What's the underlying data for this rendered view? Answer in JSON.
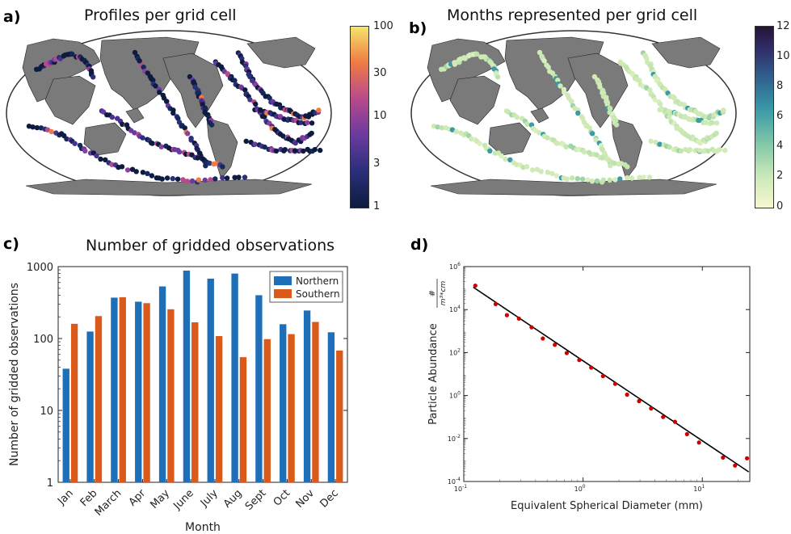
{
  "panels": {
    "a": {
      "label": "a)",
      "title": "Profiles per grid cell",
      "colorbar_ticks": [
        "100",
        "30",
        "10",
        "3",
        "1"
      ],
      "colors": {
        "low": "#0d1b3e",
        "mid": "#8d3fa0",
        "high": "#f5e46a"
      }
    },
    "b": {
      "label": "b)",
      "title": "Months represented per grid cell",
      "colorbar_ticks": [
        "12",
        "10",
        "8",
        "6",
        "4",
        "2",
        "0"
      ],
      "colors": {
        "low": "#f5f5cf",
        "mid": "#3a9aa6",
        "high": "#241533"
      }
    },
    "c": {
      "label": "c)",
      "title": "Number of gridded observations"
    },
    "d": {
      "label": "d)"
    }
  },
  "chart_data": [
    {
      "type": "bar",
      "panel": "c",
      "title": "Number of gridded observations",
      "xlabel": "Month",
      "ylabel": "Number of gridded observations",
      "yscale": "log",
      "ylim": [
        1,
        1000
      ],
      "yticks": [
        "1",
        "10",
        "100",
        "1000"
      ],
      "categories": [
        "Jan",
        "Feb",
        "March",
        "Apr",
        "May",
        "June",
        "July",
        "Aug",
        "Sept",
        "Oct",
        "Nov",
        "Dec"
      ],
      "series": [
        {
          "name": "Northern",
          "color": "#1f6fb8",
          "values": [
            38,
            125,
            370,
            325,
            530,
            880,
            680,
            800,
            400,
            158,
            245,
            122
          ]
        },
        {
          "name": "Southern",
          "color": "#d95a1b",
          "values": [
            160,
            205,
            375,
            310,
            255,
            168,
            108,
            55,
            98,
            115,
            170,
            68
          ]
        }
      ],
      "legend": "top-right"
    },
    {
      "type": "scatter",
      "panel": "d",
      "xlabel": "Equivalent Spherical Diameter (mm)",
      "ylabel": "Particle Abundance",
      "ylabel_fraction": {
        "numerator": "#",
        "denominator": "m³*cm"
      },
      "xscale": "log",
      "yscale": "log",
      "xlim": [
        0.1,
        25
      ],
      "ylim": [
        0.0001,
        1000000
      ],
      "xticks": [
        {
          "base": "10",
          "exp": "-1"
        },
        {
          "base": "10",
          "exp": "0"
        },
        {
          "base": "10",
          "exp": "1"
        }
      ],
      "yticks": [
        {
          "base": "10",
          "exp": "-4"
        },
        {
          "base": "10",
          "exp": "-2"
        },
        {
          "base": "10",
          "exp": "0"
        },
        {
          "base": "10",
          "exp": "2"
        },
        {
          "base": "10",
          "exp": "4"
        },
        {
          "base": "10",
          "exp": "6"
        }
      ],
      "points": {
        "x": [
          0.125,
          0.185,
          0.23,
          0.29,
          0.37,
          0.46,
          0.58,
          0.73,
          0.93,
          1.17,
          1.47,
          1.86,
          2.34,
          2.95,
          3.72,
          4.69,
          5.9,
          7.44,
          9.38,
          11.8,
          14.9,
          18.8,
          23.7
        ],
        "y": [
          130000,
          18000,
          5500,
          3800,
          1500,
          450,
          230,
          95,
          45,
          20,
          8,
          3.5,
          1.1,
          0.55,
          0.25,
          0.1,
          0.06,
          0.016,
          0.0065,
          null,
          0.0013,
          0.00055,
          0.0012
        ],
        "color": "#cc0000"
      },
      "fit_line": {
        "x": [
          0.12,
          24.5
        ],
        "y": [
          110000,
          0.00028
        ],
        "color": "#000000"
      }
    }
  ]
}
